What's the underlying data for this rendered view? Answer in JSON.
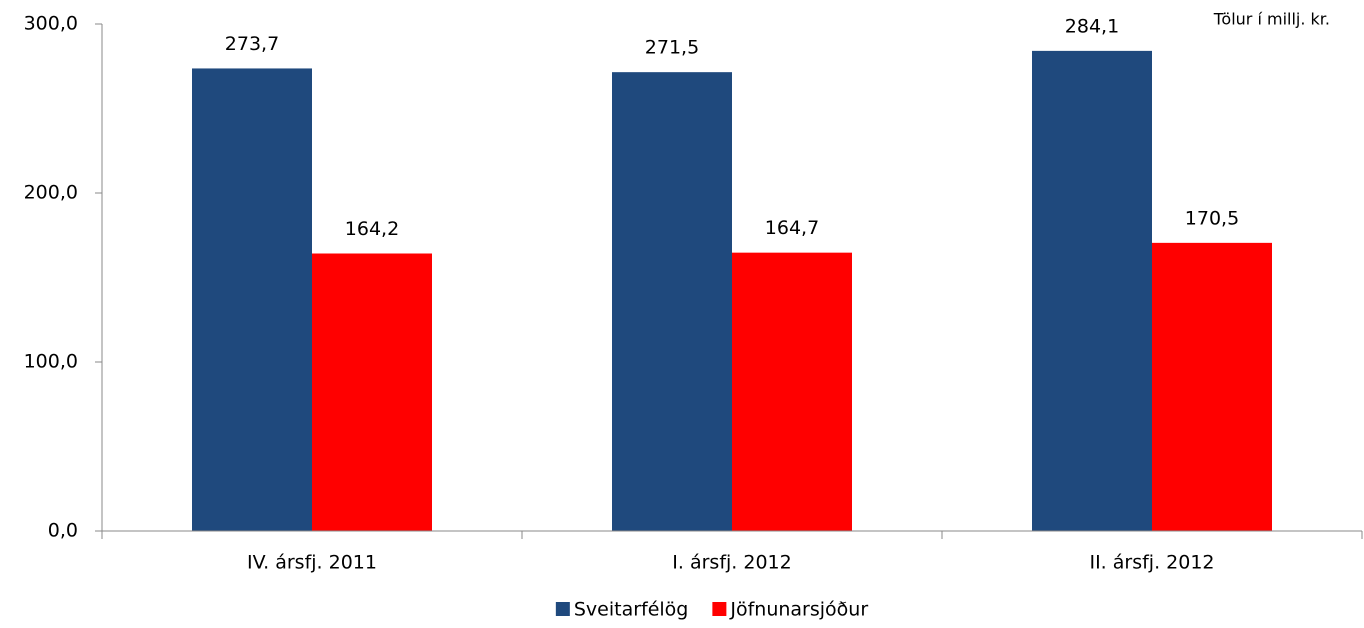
{
  "chart_data": {
    "type": "bar",
    "annotation": "Tölur í millj. kr.",
    "categories": [
      "IV. ársfj. 2011",
      "I. ársfj. 2012",
      "II. ársfj. 2012"
    ],
    "series": [
      {
        "name": "Sveitarfélög",
        "color": "#1f497d",
        "values": [
          273.7,
          271.5,
          284.1
        ],
        "value_labels": [
          "273,7",
          "271,5",
          "284,1"
        ]
      },
      {
        "name": "Jöfnunarsjóður",
        "color": "#ff0000",
        "values": [
          164.2,
          164.7,
          170.5
        ],
        "value_labels": [
          "164,2",
          "164,7",
          "170,5"
        ]
      }
    ],
    "ylim": [
      0,
      300
    ],
    "yticks": [
      {
        "value": 0,
        "label": "0,0"
      },
      {
        "value": 100,
        "label": "100,0"
      },
      {
        "value": 200,
        "label": "200,0"
      },
      {
        "value": 300,
        "label": "300,0"
      }
    ],
    "legend": "bottom"
  }
}
